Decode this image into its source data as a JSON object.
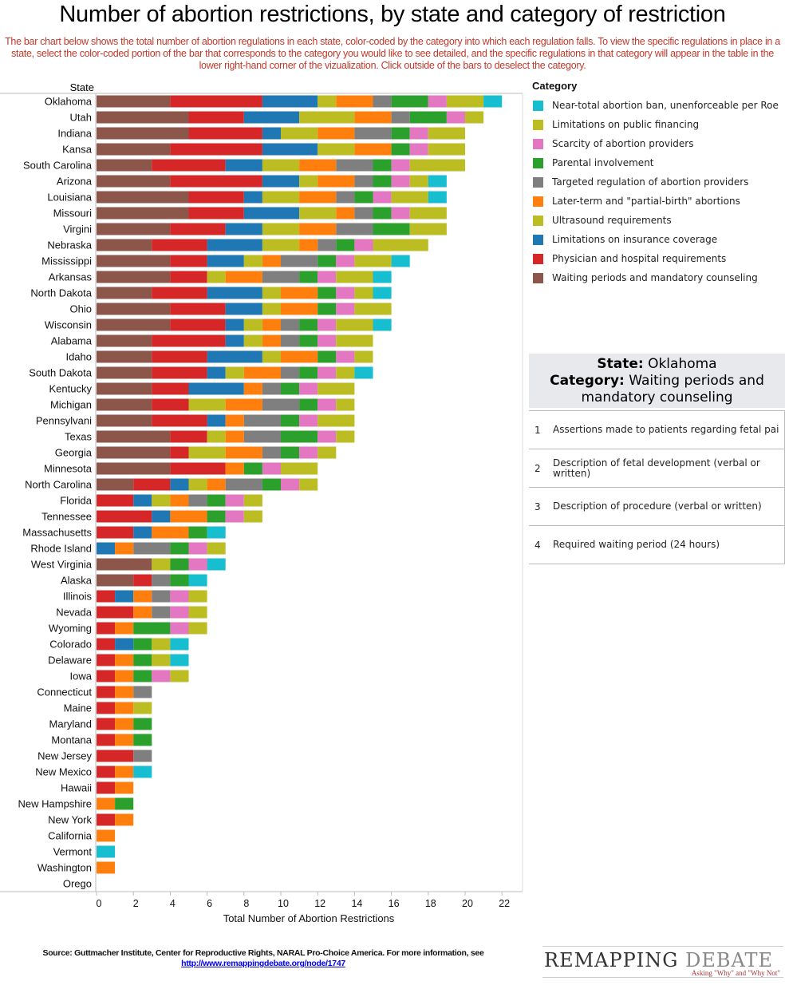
{
  "title": "Number of abortion restrictions, by state and category of restriction",
  "subtitle": "The bar chart below shows the total number of abortion regulations in each state, color-coded by the category into which each regulation falls. To view the specific regulations in place in a state, select the color-coded portion of the bar that corresponds to the category you would like to see detailed, and the specific regulations in that category will appear in the table in the lower right-hand corner of the vizualization. Click outside of the bars to deselect the category.",
  "chart_data": {
    "type": "bar",
    "orientation": "horizontal-stacked",
    "ylabel": "State",
    "xlabel": "Total Number of Abortion Restrictions",
    "xlim": [
      0,
      23
    ],
    "xticks": [
      0,
      2,
      4,
      6,
      8,
      10,
      12,
      14,
      16,
      18,
      20,
      22
    ],
    "grid": false,
    "legend_title": "Category",
    "legend_placement": "right",
    "series": [
      {
        "name": "Waiting periods and mandatory counseling",
        "color": "#8c564b"
      },
      {
        "name": "Physician and hospital requirements",
        "color": "#d62728"
      },
      {
        "name": "Limitations on insurance coverage",
        "color": "#1f77b4"
      },
      {
        "name": "Ultrasound requirements",
        "color": "#bcbd22"
      },
      {
        "name": "Later-term and \"partial-birth\" abortions",
        "color": "#ff7f0e"
      },
      {
        "name": "Targeted regulation of abortion providers",
        "color": "#7f7f7f"
      },
      {
        "name": "Parental involvement",
        "color": "#2ca02c"
      },
      {
        "name": "Scarcity of abortion providers",
        "color": "#e377c2"
      },
      {
        "name": "Limitations on public financing",
        "color": "#bcbd22"
      },
      {
        "name": "Near-total abortion ban, unenforceable per Roe",
        "color": "#17becf"
      }
    ],
    "categories": [
      "Oklahoma",
      "Utah",
      "Indiana",
      "Kansa",
      "South Carolina",
      "Arizona",
      "Louisiana",
      "Missouri",
      "Virgini",
      "Nebraska",
      "Mississippi",
      "Arkansas",
      "North Dakota",
      "Ohio",
      "Wisconsin",
      "Alabama",
      "Idaho",
      "South Dakota",
      "Kentucky",
      "Michigan",
      "Pennsylvani",
      "Texas",
      "Georgia",
      "Minnesota",
      "North Carolina",
      "Florida",
      "Tennessee",
      "Massachusetts",
      "Rhode Island",
      "West Virginia",
      "Alaska",
      "Illinois",
      "Nevada",
      "Wyoming",
      "Colorado",
      "Delaware",
      "Iowa",
      "Connecticut",
      "Maine",
      "Maryland",
      "Montana",
      "New Jersey",
      "New Mexico",
      "Hawaii",
      "New Hampshire",
      "New York",
      "California",
      "Vermont",
      "Washington",
      "Orego"
    ],
    "values": [
      [
        4,
        5,
        3,
        1,
        2,
        1,
        2,
        1,
        2,
        1
      ],
      [
        5,
        3,
        3,
        3,
        2,
        1,
        2,
        1,
        1,
        0
      ],
      [
        5,
        4,
        1,
        2,
        2,
        2,
        1,
        1,
        2,
        0
      ],
      [
        4,
        5,
        3,
        2,
        2,
        0,
        1,
        1,
        2,
        0
      ],
      [
        3,
        4,
        2,
        2,
        2,
        2,
        1,
        1,
        3,
        0
      ],
      [
        4,
        5,
        2,
        1,
        2,
        1,
        1,
        1,
        1,
        1
      ],
      [
        5,
        3,
        1,
        2,
        2,
        1,
        1,
        1,
        2,
        1
      ],
      [
        5,
        3,
        3,
        2,
        1,
        1,
        1,
        1,
        2,
        0
      ],
      [
        4,
        3,
        2,
        2,
        2,
        2,
        2,
        0,
        2,
        0
      ],
      [
        3,
        3,
        3,
        2,
        1,
        1,
        1,
        1,
        3,
        0
      ],
      [
        4,
        2,
        2,
        1,
        1,
        2,
        1,
        1,
        2,
        1
      ],
      [
        4,
        2,
        0,
        1,
        2,
        2,
        1,
        1,
        2,
        1
      ],
      [
        3,
        3,
        3,
        1,
        2,
        0,
        1,
        1,
        1,
        1
      ],
      [
        4,
        3,
        2,
        1,
        2,
        0,
        1,
        1,
        2,
        0
      ],
      [
        4,
        3,
        1,
        1,
        1,
        1,
        1,
        1,
        2,
        1
      ],
      [
        3,
        4,
        1,
        1,
        1,
        1,
        1,
        1,
        2,
        0
      ],
      [
        3,
        3,
        3,
        1,
        2,
        0,
        1,
        1,
        1,
        0
      ],
      [
        3,
        3,
        1,
        1,
        2,
        1,
        1,
        1,
        1,
        1
      ],
      [
        3,
        2,
        3,
        0,
        1,
        1,
        1,
        1,
        2,
        0
      ],
      [
        3,
        2,
        0,
        2,
        2,
        2,
        1,
        1,
        1,
        0
      ],
      [
        3,
        3,
        1,
        0,
        1,
        2,
        1,
        1,
        2,
        0
      ],
      [
        4,
        2,
        0,
        1,
        1,
        2,
        2,
        1,
        1,
        0
      ],
      [
        4,
        1,
        0,
        2,
        2,
        1,
        1,
        1,
        1,
        0
      ],
      [
        4,
        3,
        0,
        0,
        1,
        0,
        1,
        1,
        2,
        0
      ],
      [
        2,
        2,
        1,
        1,
        1,
        2,
        1,
        1,
        1,
        0
      ],
      [
        0,
        2,
        1,
        1,
        1,
        1,
        1,
        1,
        1,
        0
      ],
      [
        0,
        3,
        1,
        0,
        2,
        0,
        1,
        1,
        1,
        0
      ],
      [
        0,
        2,
        1,
        0,
        2,
        0,
        1,
        0,
        0,
        1
      ],
      [
        0,
        0,
        1,
        0,
        1,
        2,
        1,
        1,
        1,
        0
      ],
      [
        3,
        0,
        0,
        1,
        0,
        0,
        1,
        1,
        0,
        1
      ],
      [
        2,
        1,
        0,
        0,
        0,
        1,
        1,
        0,
        0,
        1
      ],
      [
        0,
        1,
        1,
        0,
        1,
        1,
        0,
        1,
        1,
        0
      ],
      [
        0,
        2,
        0,
        0,
        1,
        1,
        0,
        1,
        1,
        0
      ],
      [
        0,
        1,
        0,
        0,
        1,
        0,
        2,
        1,
        1,
        0
      ],
      [
        0,
        1,
        1,
        0,
        0,
        0,
        1,
        0,
        1,
        1
      ],
      [
        0,
        1,
        0,
        0,
        1,
        0,
        1,
        0,
        1,
        1
      ],
      [
        0,
        1,
        0,
        0,
        1,
        0,
        1,
        1,
        1,
        0
      ],
      [
        0,
        1,
        0,
        0,
        1,
        1,
        0,
        0,
        0,
        0
      ],
      [
        0,
        1,
        0,
        0,
        1,
        0,
        0,
        0,
        1,
        0
      ],
      [
        0,
        1,
        0,
        0,
        1,
        0,
        1,
        0,
        0,
        0
      ],
      [
        0,
        1,
        0,
        0,
        1,
        0,
        1,
        0,
        0,
        0
      ],
      [
        0,
        2,
        0,
        0,
        0,
        1,
        0,
        0,
        0,
        0
      ],
      [
        0,
        1,
        0,
        0,
        1,
        0,
        0,
        0,
        0,
        1
      ],
      [
        0,
        1,
        0,
        0,
        1,
        0,
        0,
        0,
        0,
        0
      ],
      [
        0,
        0,
        0,
        0,
        1,
        0,
        1,
        0,
        0,
        0
      ],
      [
        0,
        1,
        0,
        0,
        1,
        0,
        0,
        0,
        0,
        0
      ],
      [
        0,
        0,
        0,
        0,
        1,
        0,
        0,
        0,
        0,
        0
      ],
      [
        0,
        0,
        0,
        0,
        0,
        0,
        0,
        0,
        0,
        1
      ],
      [
        0,
        0,
        0,
        0,
        1,
        0,
        0,
        0,
        0,
        0
      ],
      [
        0,
        0,
        0,
        0,
        0,
        0,
        0,
        0,
        0,
        0
      ]
    ]
  },
  "detail": {
    "state_label": "State:",
    "state_value": "Oklahoma",
    "category_label": "Category:",
    "category_value": "Waiting periods and mandatory counseling",
    "rows": [
      {
        "num": "1",
        "text": "Assertions made to patients regarding fetal pai"
      },
      {
        "num": "2",
        "text": "Description of fetal development (verbal or written)"
      },
      {
        "num": "3",
        "text": "Description of procedure (verbal or written)"
      },
      {
        "num": "4",
        "text": "Required waiting period (24 hours)"
      }
    ]
  },
  "footer": {
    "source_text": "Source: Guttmacher Institute, Center for Reproductive Rights, NARAL Pro-Choice America. For more information, see ",
    "source_link": "http://www.remappingdebate.org/node/1747"
  },
  "logo": {
    "main": "REMAPPING",
    "light": "DEBATE",
    "tagline": "Asking \"Why\" and \"Why Not\""
  }
}
